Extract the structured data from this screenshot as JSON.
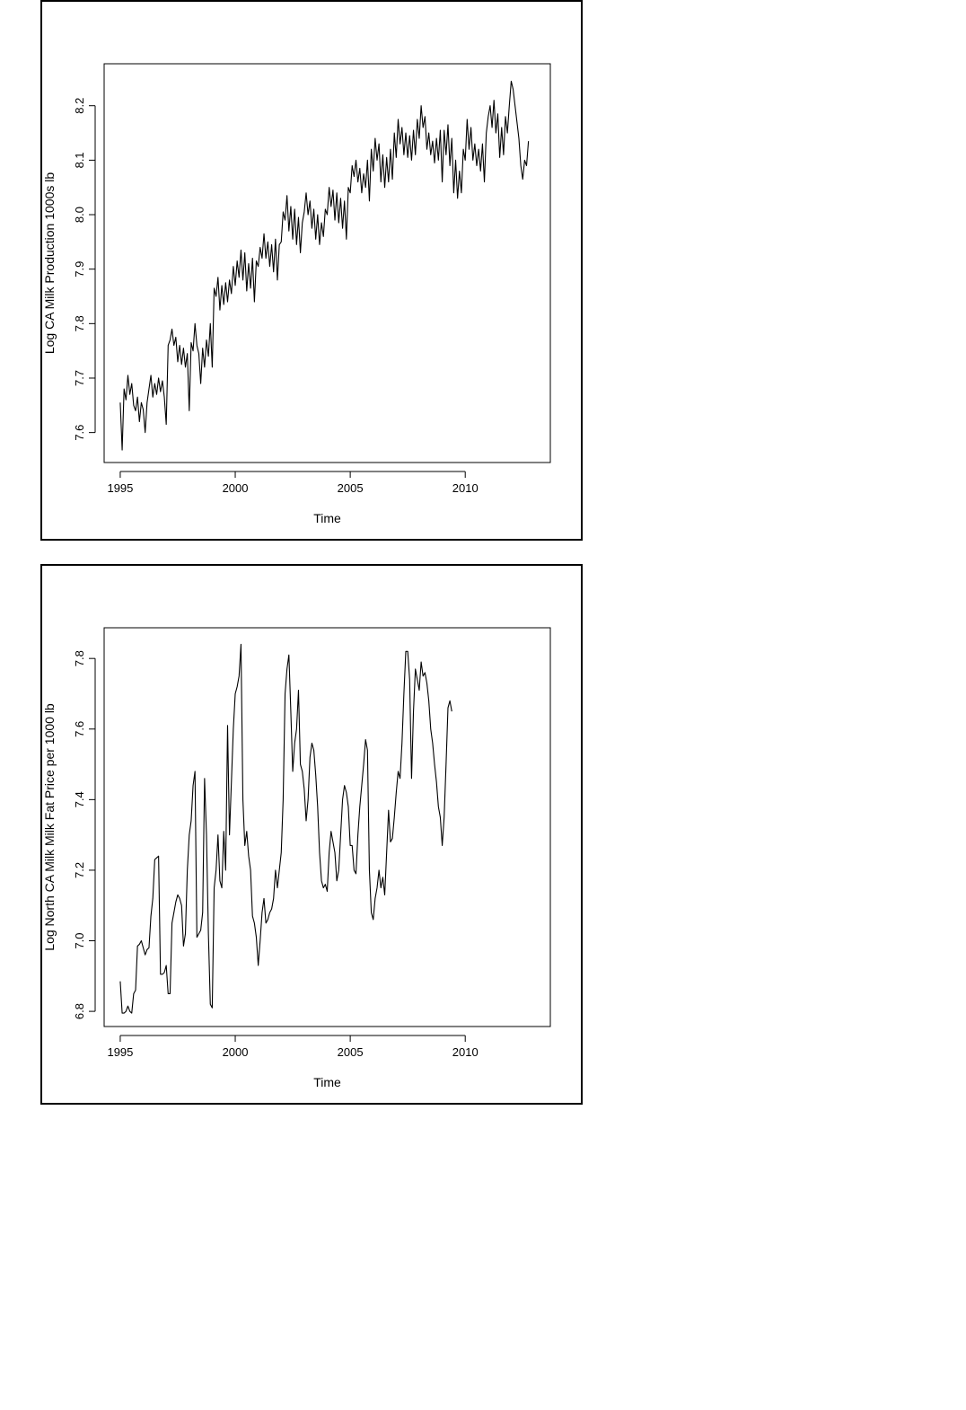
{
  "chart_data": [
    {
      "type": "line",
      "title": "",
      "xlabel": "Time",
      "ylabel": "Log CA Milk Production 1000s lb",
      "xlim": [
        1994.3,
        2013.7
      ],
      "ylim": [
        7.545,
        8.277
      ],
      "xticks": [
        1995,
        2000,
        2005,
        2010
      ],
      "xtick_labels": [
        "1995",
        "2000",
        "2005",
        "2010"
      ],
      "yticks": [
        7.6,
        7.7,
        7.8,
        7.9,
        8.0,
        8.1,
        8.2
      ],
      "ytick_labels": [
        "7.6",
        "7.7",
        "7.8",
        "7.9",
        "8.0",
        "8.1",
        "8.2"
      ],
      "grid": false,
      "x_start": 1995.0,
      "x_step": 0.08333,
      "series": [
        {
          "values": [
            7.655,
            7.568,
            7.68,
            7.66,
            7.705,
            7.67,
            7.69,
            7.65,
            7.64,
            7.665,
            7.62,
            7.655,
            7.642,
            7.6,
            7.655,
            7.68,
            7.705,
            7.665,
            7.69,
            7.67,
            7.7,
            7.675,
            7.695,
            7.665,
            7.615,
            7.76,
            7.77,
            7.79,
            7.76,
            7.775,
            7.73,
            7.76,
            7.725,
            7.755,
            7.72,
            7.745,
            7.64,
            7.765,
            7.75,
            7.8,
            7.76,
            7.745,
            7.69,
            7.755,
            7.72,
            7.77,
            7.74,
            7.8,
            7.72,
            7.865,
            7.85,
            7.885,
            7.825,
            7.87,
            7.835,
            7.875,
            7.84,
            7.88,
            7.855,
            7.905,
            7.87,
            7.915,
            7.885,
            7.935,
            7.88,
            7.93,
            7.86,
            7.91,
            7.865,
            7.92,
            7.84,
            7.915,
            7.905,
            7.94,
            7.92,
            7.965,
            7.92,
            7.95,
            7.905,
            7.945,
            7.895,
            7.955,
            7.88,
            7.945,
            7.95,
            8.005,
            7.99,
            8.035,
            7.97,
            8.015,
            7.955,
            8.01,
            7.945,
            7.995,
            7.93,
            7.985,
            8.005,
            8.04,
            8.0,
            8.025,
            7.975,
            8.01,
            7.955,
            8.0,
            7.945,
            7.985,
            7.96,
            8.01,
            8.0,
            8.05,
            8.015,
            8.045,
            7.99,
            8.04,
            7.985,
            8.03,
            7.975,
            8.025,
            7.955,
            8.05,
            8.04,
            8.09,
            8.07,
            8.1,
            8.06,
            8.085,
            8.04,
            8.075,
            8.05,
            8.1,
            8.025,
            8.12,
            8.08,
            8.14,
            8.1,
            8.13,
            8.06,
            8.11,
            8.05,
            8.105,
            8.06,
            8.12,
            8.065,
            8.15,
            8.105,
            8.175,
            8.13,
            8.16,
            8.11,
            8.15,
            8.105,
            8.145,
            8.1,
            8.155,
            8.11,
            8.175,
            8.14,
            8.2,
            8.16,
            8.18,
            8.12,
            8.15,
            8.11,
            8.135,
            8.095,
            8.14,
            8.1,
            8.155,
            8.06,
            8.155,
            8.11,
            8.165,
            8.09,
            8.14,
            8.04,
            8.1,
            8.03,
            8.08,
            8.04,
            8.12,
            8.1,
            8.175,
            8.12,
            8.16,
            8.1,
            8.13,
            8.09,
            8.12,
            8.08,
            8.13,
            8.06,
            8.15,
            8.18,
            8.2,
            8.16,
            8.21,
            8.15,
            8.185,
            8.105,
            8.16,
            8.11,
            8.18,
            8.15,
            8.2,
            8.245,
            8.23,
            8.2,
            8.17,
            8.14,
            8.09,
            8.065,
            8.1,
            8.09,
            8.135
          ]
        }
      ]
    },
    {
      "type": "line",
      "title": "",
      "xlabel": "Time",
      "ylabel": "Log North CA Milk Milk Fat Price per 1000 lb",
      "xlim": [
        1994.3,
        2013.7
      ],
      "ylim": [
        6.757,
        7.887
      ],
      "xticks": [
        1995,
        2000,
        2005,
        2010
      ],
      "xtick_labels": [
        "1995",
        "2000",
        "2005",
        "2010"
      ],
      "yticks": [
        6.8,
        7.0,
        7.2,
        7.4,
        7.6,
        7.8
      ],
      "ytick_labels": [
        "6.8",
        "7.0",
        "7.2",
        "7.4",
        "7.6",
        "7.8"
      ],
      "grid": false,
      "x_start": 1995.0,
      "x_step": 0.08333,
      "series": [
        {
          "values": [
            6.885,
            6.795,
            6.795,
            6.8,
            6.815,
            6.8,
            6.795,
            6.85,
            6.86,
            6.985,
            6.99,
            7.0,
            6.98,
            6.96,
            6.975,
            6.98,
            7.07,
            7.12,
            7.23,
            7.235,
            7.24,
            6.905,
            6.905,
            6.91,
            6.93,
            6.85,
            6.85,
            7.05,
            7.08,
            7.11,
            7.13,
            7.12,
            7.1,
            6.985,
            7.02,
            7.2,
            7.3,
            7.34,
            7.44,
            7.48,
            7.01,
            7.02,
            7.03,
            7.08,
            7.46,
            7.3,
            7.02,
            6.82,
            6.81,
            7.15,
            7.2,
            7.3,
            7.17,
            7.15,
            7.31,
            7.2,
            7.61,
            7.3,
            7.45,
            7.6,
            7.7,
            7.72,
            7.75,
            7.84,
            7.4,
            7.27,
            7.31,
            7.24,
            7.2,
            7.07,
            7.05,
            7.01,
            6.93,
            7.0,
            7.08,
            7.12,
            7.05,
            7.06,
            7.08,
            7.09,
            7.12,
            7.2,
            7.15,
            7.2,
            7.25,
            7.4,
            7.7,
            7.77,
            7.81,
            7.65,
            7.48,
            7.56,
            7.6,
            7.71,
            7.5,
            7.48,
            7.43,
            7.34,
            7.4,
            7.52,
            7.56,
            7.54,
            7.47,
            7.38,
            7.25,
            7.17,
            7.15,
            7.16,
            7.14,
            7.25,
            7.31,
            7.28,
            7.25,
            7.17,
            7.2,
            7.3,
            7.4,
            7.44,
            7.42,
            7.38,
            7.27,
            7.27,
            7.2,
            7.19,
            7.3,
            7.38,
            7.44,
            7.5,
            7.57,
            7.54,
            7.2,
            7.08,
            7.06,
            7.12,
            7.15,
            7.2,
            7.15,
            7.18,
            7.13,
            7.25,
            7.37,
            7.28,
            7.29,
            7.35,
            7.42,
            7.48,
            7.46,
            7.56,
            7.7,
            7.82,
            7.82,
            7.74,
            7.46,
            7.65,
            7.77,
            7.74,
            7.71,
            7.79,
            7.75,
            7.76,
            7.73,
            7.68,
            7.6,
            7.56,
            7.5,
            7.45,
            7.38,
            7.35,
            7.27,
            7.35,
            7.5,
            7.66,
            7.68,
            7.65
          ]
        }
      ]
    }
  ]
}
